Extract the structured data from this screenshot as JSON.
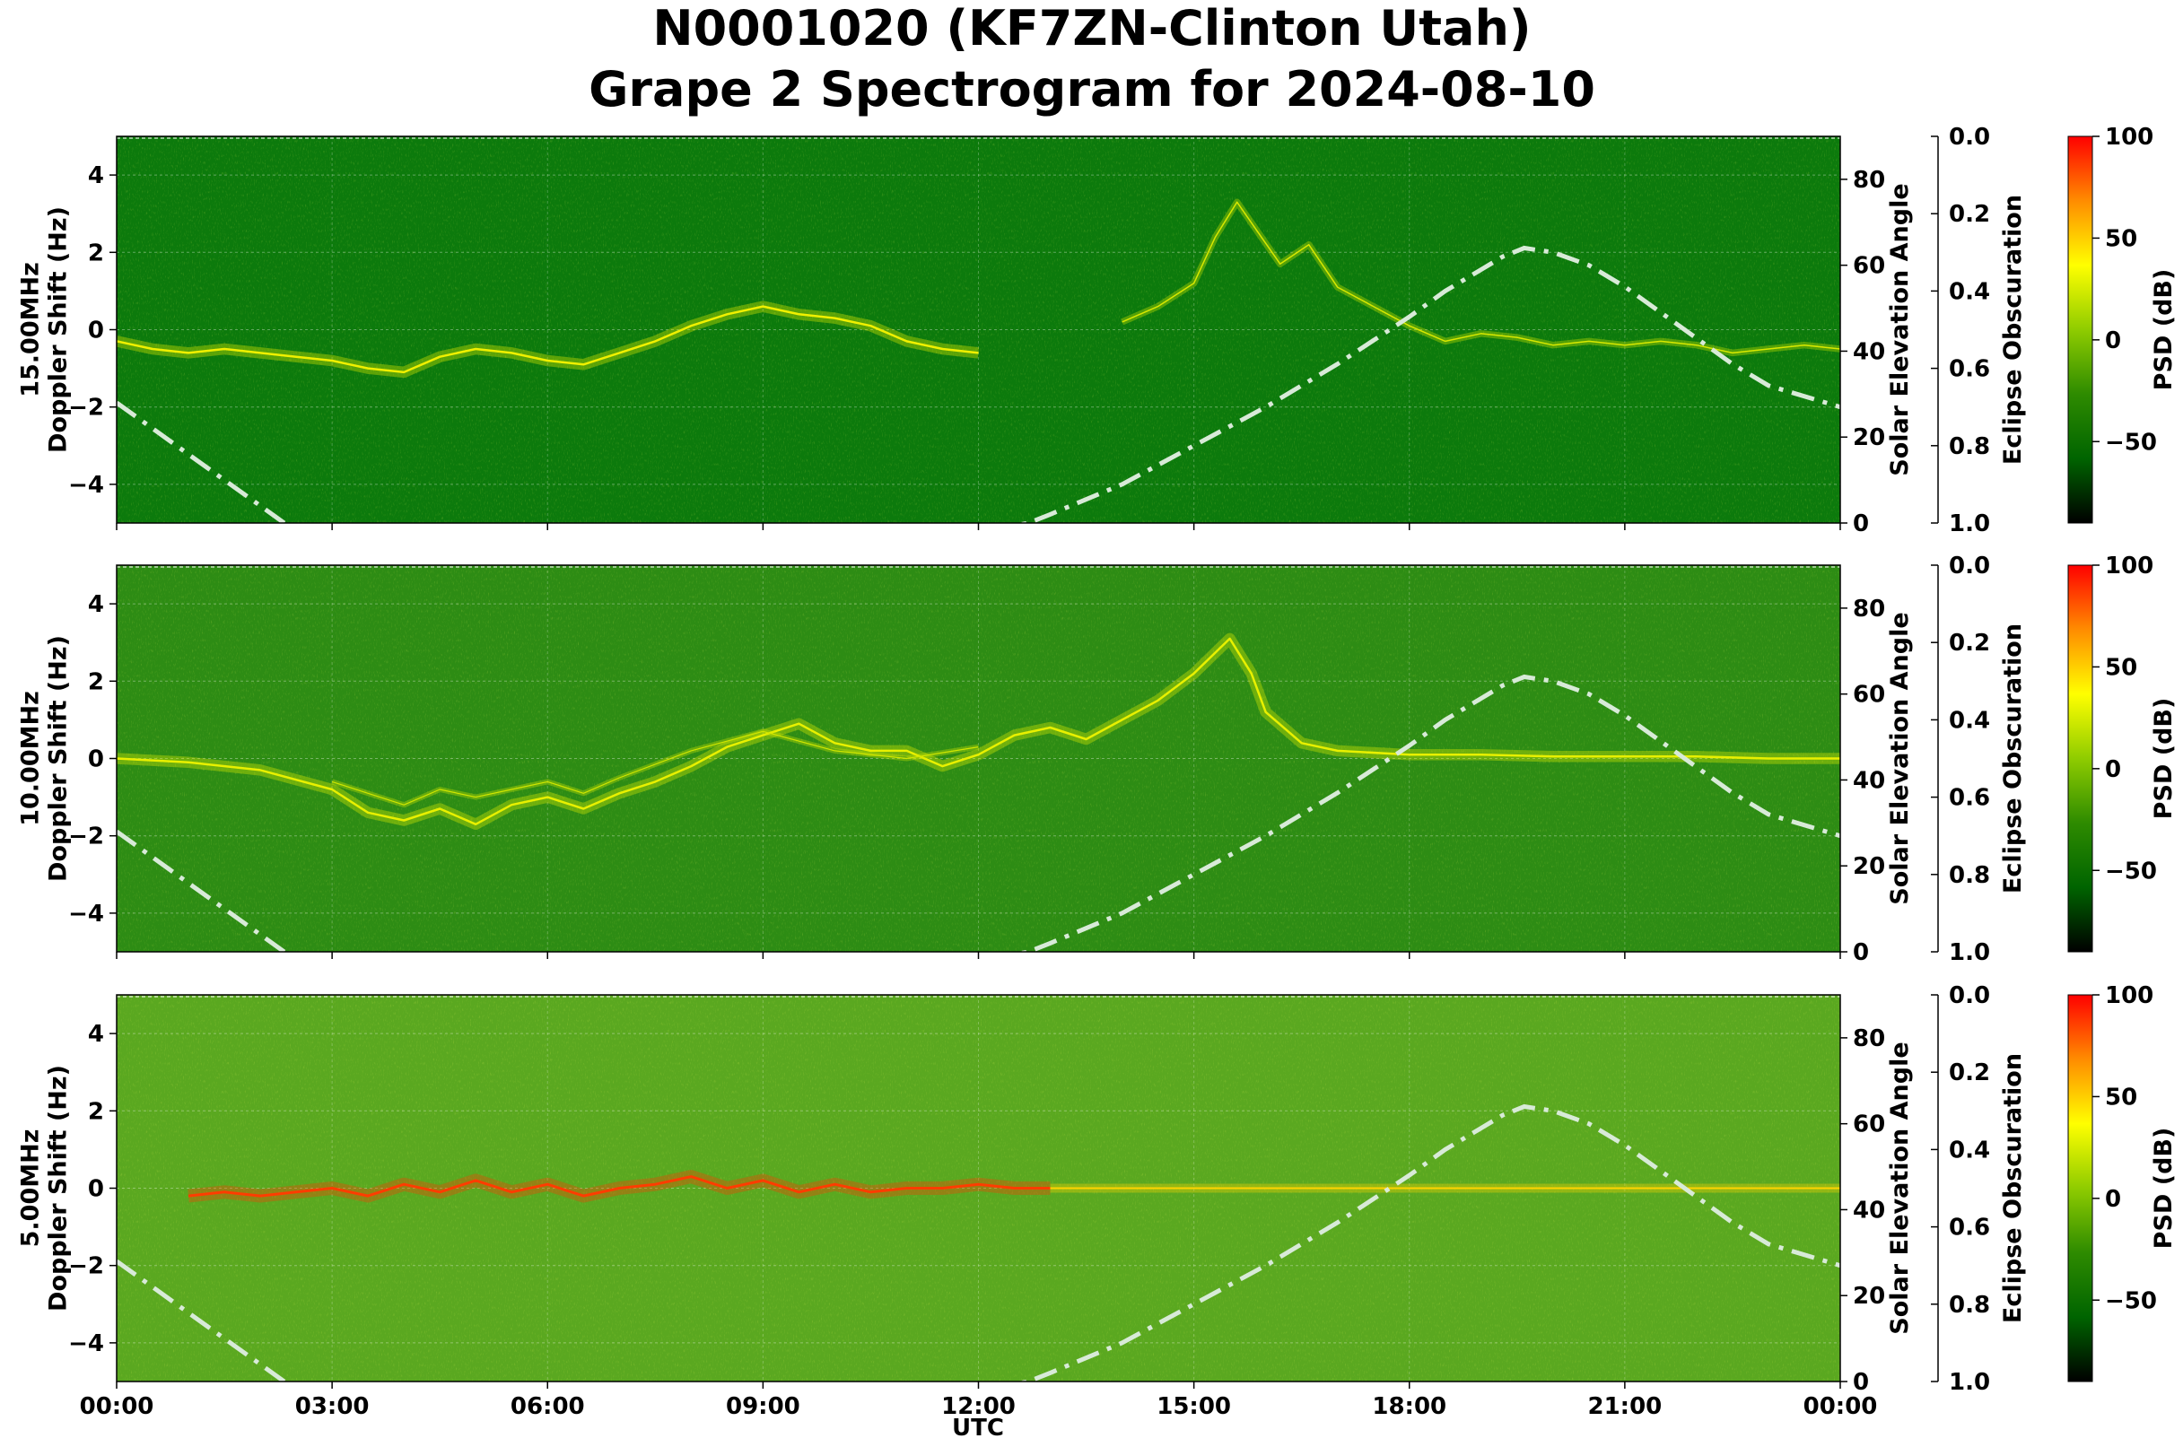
{
  "title_line1": "N0001020 (KF7ZN-Clinton Utah)",
  "title_line2": "Grape 2 Spectrogram for 2024-08-10",
  "chart_data": {
    "type": "heatmap",
    "xlabel": "UTC",
    "x_ticks": [
      "00:00",
      "03:00",
      "06:00",
      "09:00",
      "12:00",
      "15:00",
      "18:00",
      "21:00",
      "00:00"
    ],
    "xlim_hours": [
      0,
      24
    ],
    "ylim": [
      -5,
      5
    ],
    "y_ticks": [
      -4,
      -2,
      0,
      2,
      4
    ],
    "right_axis_label": "Solar Elevation Angle",
    "right_ylim": [
      0,
      90
    ],
    "right_ticks": [
      0,
      20,
      40,
      60,
      80
    ],
    "obscuration_label": "Eclipse Obscuration",
    "obscuration_ticks": [
      "0.0",
      "0.2",
      "0.4",
      "0.6",
      "0.8",
      "1.0"
    ],
    "colorbar_label": "PSD (dB)",
    "colorbar_range": [
      -90,
      100
    ],
    "colorbar_ticks": [
      100,
      50,
      0,
      -50
    ],
    "colorbar_colors": [
      "#000000",
      "#006400",
      "#2e8b00",
      "#8fcc00",
      "#ffff00",
      "#ff8c00",
      "#ff0000"
    ],
    "solar_elevation": {
      "style": "dash-dot",
      "color": "#d8ead8",
      "points": [
        [
          0,
          28
        ],
        [
          0.5,
          22
        ],
        [
          1,
          16
        ],
        [
          1.5,
          10
        ],
        [
          2,
          4
        ],
        [
          2.5,
          -2
        ],
        [
          12,
          -2
        ],
        [
          12.7,
          0
        ],
        [
          13,
          2
        ],
        [
          14,
          9
        ],
        [
          15,
          18
        ],
        [
          16,
          27
        ],
        [
          17,
          37
        ],
        [
          18,
          48
        ],
        [
          18.5,
          54
        ],
        [
          19,
          59
        ],
        [
          19.3,
          62
        ],
        [
          19.6,
          64
        ],
        [
          20,
          63
        ],
        [
          20.5,
          60
        ],
        [
          21,
          55
        ],
        [
          21.5,
          49
        ],
        [
          22,
          43
        ],
        [
          22.5,
          37
        ],
        [
          23,
          32
        ],
        [
          24,
          27
        ]
      ]
    },
    "panels": [
      {
        "name": "15.00MHz",
        "ylabel": "15.00MHz\nDoppler Shift (Hz)",
        "background": "#0c7a0c",
        "traces": [
          {
            "color": "#f0f000",
            "width": 2.5,
            "points": [
              [
                0,
                -0.3
              ],
              [
                0.5,
                -0.5
              ],
              [
                1,
                -0.6
              ],
              [
                1.5,
                -0.5
              ],
              [
                2,
                -0.6
              ],
              [
                2.5,
                -0.7
              ],
              [
                3,
                -0.8
              ],
              [
                3.5,
                -1.0
              ],
              [
                4,
                -1.1
              ],
              [
                4.5,
                -0.7
              ],
              [
                5,
                -0.5
              ],
              [
                5.5,
                -0.6
              ],
              [
                6,
                -0.8
              ],
              [
                6.5,
                -0.9
              ],
              [
                7,
                -0.6
              ],
              [
                7.5,
                -0.3
              ],
              [
                8,
                0.1
              ],
              [
                8.5,
                0.4
              ],
              [
                9,
                0.6
              ],
              [
                9.5,
                0.4
              ],
              [
                10,
                0.3
              ],
              [
                10.5,
                0.1
              ],
              [
                11,
                -0.3
              ],
              [
                11.5,
                -0.5
              ],
              [
                12,
                -0.6
              ]
            ]
          },
          {
            "color": "#d8e800",
            "width": 1.5,
            "points": [
              [
                14,
                0.2
              ],
              [
                14.5,
                0.6
              ],
              [
                15,
                1.2
              ],
              [
                15.3,
                2.4
              ],
              [
                15.6,
                3.3
              ],
              [
                15.9,
                2.5
              ],
              [
                16.2,
                1.7
              ],
              [
                16.6,
                2.2
              ],
              [
                17,
                1.1
              ],
              [
                17.5,
                0.6
              ],
              [
                18,
                0.1
              ],
              [
                18.5,
                -0.3
              ],
              [
                19,
                -0.1
              ],
              [
                19.5,
                -0.2
              ],
              [
                20,
                -0.4
              ],
              [
                20.5,
                -0.3
              ],
              [
                21,
                -0.4
              ],
              [
                21.5,
                -0.3
              ],
              [
                22,
                -0.4
              ],
              [
                22.5,
                -0.6
              ],
              [
                23,
                -0.5
              ],
              [
                23.5,
                -0.4
              ],
              [
                24,
                -0.5
              ]
            ]
          }
        ]
      },
      {
        "name": "10.00MHz",
        "ylabel": "10.00MHz\nDoppler Shift (Hz)",
        "background": "#2d8c14",
        "traces": [
          {
            "color": "#e8f000",
            "width": 2.5,
            "points": [
              [
                0,
                0
              ],
              [
                1,
                -0.1
              ],
              [
                2,
                -0.3
              ],
              [
                3,
                -0.8
              ],
              [
                3.5,
                -1.4
              ],
              [
                4,
                -1.6
              ],
              [
                4.5,
                -1.3
              ],
              [
                5,
                -1.7
              ],
              [
                5.5,
                -1.2
              ],
              [
                6,
                -1.0
              ],
              [
                6.5,
                -1.3
              ],
              [
                7,
                -0.9
              ],
              [
                7.5,
                -0.6
              ],
              [
                8,
                -0.2
              ],
              [
                8.5,
                0.3
              ],
              [
                9,
                0.6
              ],
              [
                9.5,
                0.9
              ],
              [
                10,
                0.4
              ],
              [
                10.5,
                0.2
              ],
              [
                11,
                0.2
              ],
              [
                11.5,
                -0.2
              ],
              [
                12,
                0.1
              ],
              [
                12.5,
                0.6
              ],
              [
                13,
                0.8
              ],
              [
                13.5,
                0.5
              ],
              [
                14,
                1.0
              ],
              [
                14.5,
                1.5
              ],
              [
                15,
                2.2
              ],
              [
                15.5,
                3.1
              ],
              [
                15.8,
                2.2
              ],
              [
                16,
                1.2
              ],
              [
                16.5,
                0.4
              ],
              [
                17,
                0.2
              ],
              [
                18,
                0.1
              ],
              [
                19,
                0.1
              ],
              [
                20,
                0.05
              ],
              [
                21,
                0.05
              ],
              [
                22,
                0.05
              ],
              [
                23,
                0.0
              ],
              [
                24,
                0.0
              ]
            ]
          },
          {
            "color": "#d0e600",
            "width": 1.2,
            "points": [
              [
                3,
                -0.6
              ],
              [
                3.5,
                -0.9
              ],
              [
                4,
                -1.2
              ],
              [
                4.5,
                -0.8
              ],
              [
                5,
                -1.0
              ],
              [
                5.5,
                -0.8
              ],
              [
                6,
                -0.6
              ],
              [
                6.5,
                -0.9
              ],
              [
                7,
                -0.5
              ],
              [
                8,
                0.2
              ],
              [
                9,
                0.7
              ],
              [
                10,
                0.2
              ],
              [
                11,
                0.0
              ],
              [
                12,
                0.3
              ]
            ]
          }
        ]
      },
      {
        "name": "5.00MHz",
        "ylabel": "5.00MHz\nDoppler Shift (Hz)",
        "background": "#5aa820",
        "traces": [
          {
            "color": "#ff3c00",
            "width": 3,
            "points": [
              [
                1,
                -0.2
              ],
              [
                1.5,
                -0.1
              ],
              [
                2,
                -0.2
              ],
              [
                2.5,
                -0.1
              ],
              [
                3,
                0.0
              ],
              [
                3.5,
                -0.2
              ],
              [
                4,
                0.1
              ],
              [
                4.5,
                -0.1
              ],
              [
                5,
                0.2
              ],
              [
                5.5,
                -0.1
              ],
              [
                6,
                0.1
              ],
              [
                6.5,
                -0.2
              ],
              [
                7,
                0.0
              ],
              [
                7.5,
                0.1
              ],
              [
                8,
                0.3
              ],
              [
                8.5,
                0.0
              ],
              [
                9,
                0.2
              ],
              [
                9.5,
                -0.1
              ],
              [
                10,
                0.1
              ],
              [
                10.5,
                -0.1
              ],
              [
                11,
                0.0
              ],
              [
                11.5,
                0.0
              ],
              [
                12,
                0.1
              ],
              [
                12.5,
                0.0
              ],
              [
                13,
                0.0
              ]
            ]
          },
          {
            "color": "#ffd400",
            "width": 2,
            "points": [
              [
                13,
                0.0
              ],
              [
                14,
                0.0
              ],
              [
                15,
                0.0
              ],
              [
                16,
                0.0
              ],
              [
                17,
                0.0
              ],
              [
                18,
                0.0
              ],
              [
                19,
                0.0
              ],
              [
                20,
                0.0
              ],
              [
                21,
                0.0
              ],
              [
                22,
                0.0
              ],
              [
                23,
                0.0
              ],
              [
                24,
                0.0
              ]
            ]
          }
        ]
      }
    ]
  }
}
